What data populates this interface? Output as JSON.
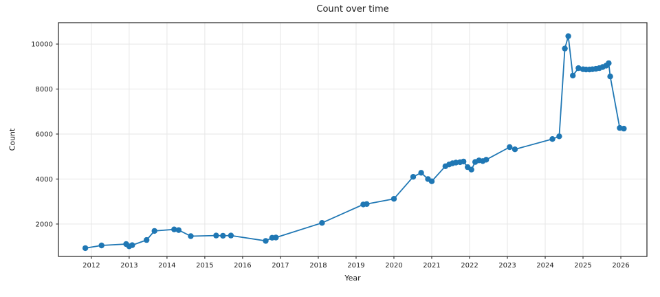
{
  "chart_data": {
    "type": "line",
    "title": "Count over time",
    "xlabel": "Year",
    "ylabel": "Count",
    "series": [
      {
        "name": "Count",
        "x": [
          2011.84,
          2012.27,
          2012.92,
          2013.0,
          2013.08,
          2013.46,
          2013.67,
          2014.19,
          2014.31,
          2014.63,
          2015.3,
          2015.48,
          2015.69,
          2016.61,
          2016.78,
          2016.88,
          2018.1,
          2019.19,
          2019.28,
          2020.0,
          2020.51,
          2020.72,
          2020.9,
          2021.0,
          2021.36,
          2021.46,
          2021.55,
          2021.64,
          2021.75,
          2021.84,
          2021.95,
          2022.05,
          2022.15,
          2022.25,
          2022.35,
          2022.44,
          2023.06,
          2023.2,
          2024.19,
          2024.37,
          2024.52,
          2024.61,
          2024.73,
          2024.88,
          2025.0,
          2025.08,
          2025.17,
          2025.25,
          2025.34,
          2025.43,
          2025.52,
          2025.61,
          2025.68,
          2025.72,
          2025.97,
          2026.08
        ],
        "y": [
          930,
          1050,
          1110,
          1010,
          1060,
          1290,
          1695,
          1760,
          1730,
          1460,
          1490,
          1480,
          1490,
          1250,
          1390,
          1400,
          2050,
          2870,
          2890,
          3120,
          4100,
          4280,
          4000,
          3900,
          4570,
          4650,
          4700,
          4730,
          4750,
          4780,
          4530,
          4420,
          4760,
          4830,
          4800,
          4860,
          5420,
          5320,
          5780,
          5900,
          9800,
          10350,
          8600,
          8930,
          8880,
          8870,
          8870,
          8880,
          8900,
          8930,
          8980,
          9040,
          9150,
          8560,
          6270,
          6240
        ]
      }
    ],
    "x_ticks": [
      2012,
      2013,
      2014,
      2015,
      2016,
      2017,
      2018,
      2019,
      2020,
      2021,
      2022,
      2023,
      2024,
      2025,
      2026
    ],
    "y_ticks": [
      2000,
      4000,
      6000,
      8000,
      10000
    ],
    "xlim": [
      2011.13,
      2026.69
    ],
    "ylim": [
      560,
      10950
    ],
    "grid": true,
    "legend": "none",
    "marker": "circle"
  },
  "colors": {
    "line": "#1f77b4",
    "marker": "#1f77b4",
    "grid": "#e6e6e6",
    "spine": "#333333",
    "tick": "#333333",
    "text": "#1a1a1a",
    "background": "#ffffff"
  }
}
